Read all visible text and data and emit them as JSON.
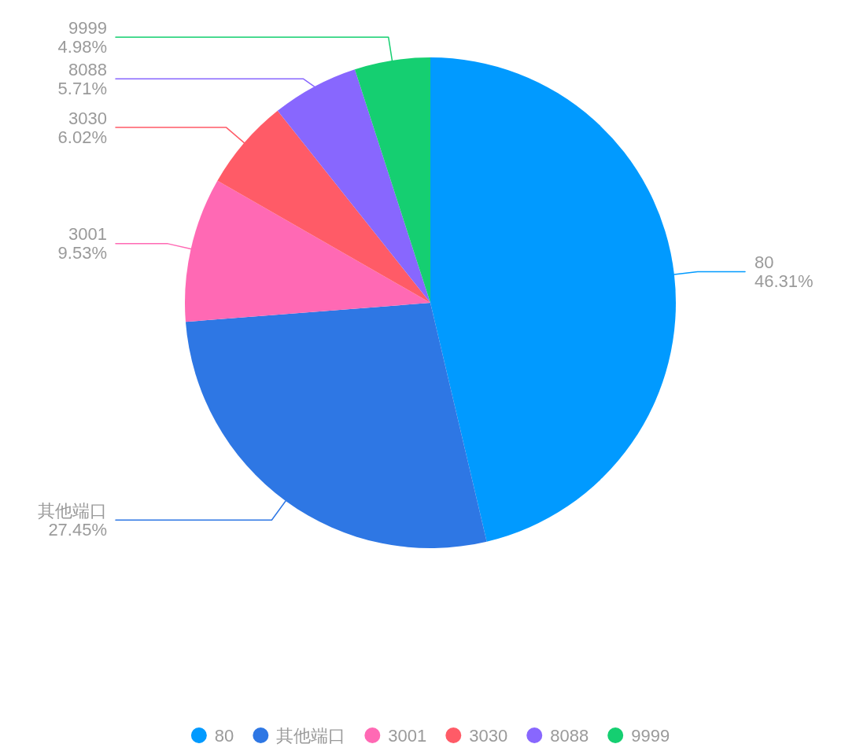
{
  "chart_data": {
    "type": "pie",
    "categories": [
      "80",
      "其他端口",
      "3001",
      "3030",
      "8088",
      "9999"
    ],
    "values": [
      46.31,
      27.45,
      9.53,
      6.02,
      5.71,
      4.98
    ],
    "colors": [
      "#019aff",
      "#2e77e4",
      "#ff69b4",
      "#ff5b67",
      "#8867fe",
      "#15cf71"
    ],
    "value_labels": [
      "46.31%",
      "27.45%",
      "9.53%",
      "6.02%",
      "5.71%",
      "4.98%"
    ],
    "legend": "bottom"
  }
}
